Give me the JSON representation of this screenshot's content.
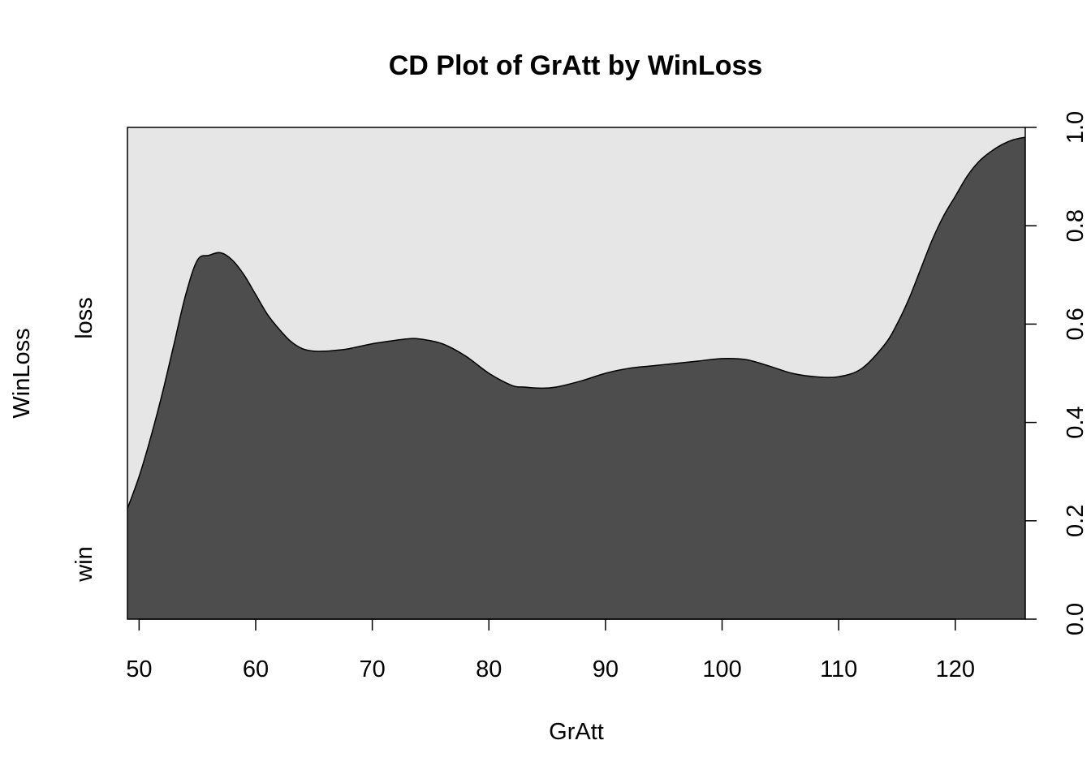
{
  "chart_data": {
    "type": "area",
    "title": "CD Plot of GrAtt by WinLoss",
    "xlabel": "GrAtt",
    "ylabel": "WinLoss",
    "xlim": [
      49,
      126
    ],
    "ylim": [
      0,
      1
    ],
    "x_ticks": [
      50,
      60,
      70,
      80,
      90,
      100,
      110,
      120
    ],
    "y_ticks": [
      0.0,
      0.2,
      0.4,
      0.6,
      0.8,
      1.0
    ],
    "y_tick_labels": [
      "0.0",
      "0.2",
      "0.4",
      "0.6",
      "0.8",
      "1.0"
    ],
    "categories": [
      "win",
      "loss"
    ],
    "colors": {
      "win": "#4d4d4d",
      "loss": "#e6e6e6"
    },
    "series": [
      {
        "name": "win",
        "x": [
          49,
          50,
          51,
          52,
          53,
          54,
          55,
          56,
          57,
          58,
          59,
          60,
          61,
          62,
          63,
          64,
          65,
          66,
          67,
          68,
          70,
          72,
          73,
          74,
          76,
          78,
          80,
          82,
          83,
          84,
          85,
          86,
          88,
          90,
          92,
          94,
          96,
          98,
          100,
          102,
          104,
          106,
          108,
          110,
          112,
          114,
          115,
          116,
          117,
          118,
          119,
          120,
          121,
          122,
          123,
          124,
          125,
          126
        ],
        "values": [
          0.225,
          0.29,
          0.37,
          0.46,
          0.56,
          0.66,
          0.73,
          0.74,
          0.745,
          0.73,
          0.7,
          0.66,
          0.62,
          0.59,
          0.565,
          0.55,
          0.545,
          0.545,
          0.547,
          0.55,
          0.56,
          0.567,
          0.57,
          0.57,
          0.56,
          0.535,
          0.5,
          0.475,
          0.472,
          0.47,
          0.47,
          0.473,
          0.485,
          0.5,
          0.51,
          0.515,
          0.52,
          0.525,
          0.53,
          0.528,
          0.515,
          0.5,
          0.493,
          0.493,
          0.51,
          0.56,
          0.6,
          0.65,
          0.71,
          0.77,
          0.82,
          0.86,
          0.9,
          0.93,
          0.95,
          0.965,
          0.975,
          0.98
        ]
      }
    ]
  }
}
